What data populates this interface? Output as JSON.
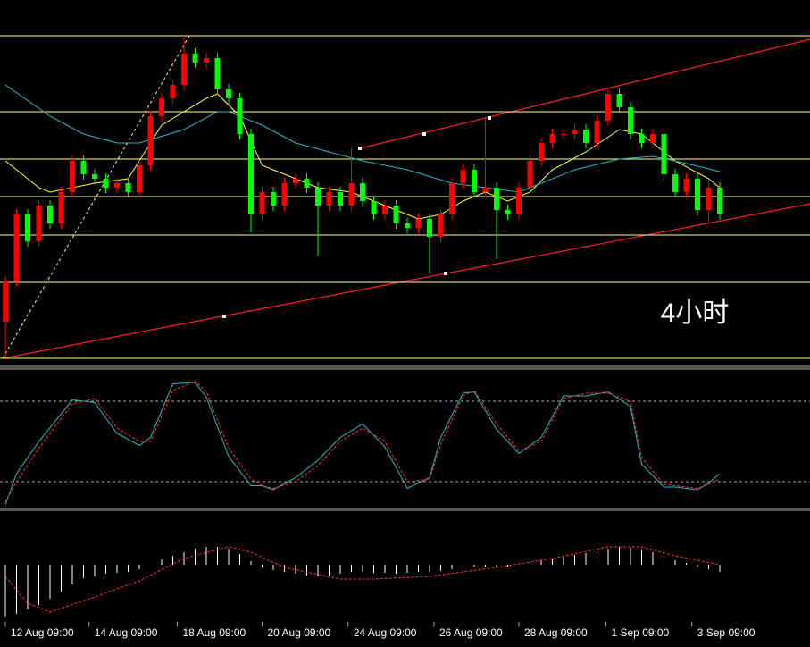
{
  "chart_data": [
    {
      "type": "candlestick",
      "up_color": "#ff0000",
      "down_color": "#00ff00",
      "level_color": "#ffff80",
      "annotation": "4小时",
      "xlim": [
        -0.48,
        72.08
      ],
      "ylim": [
        0,
        408
      ],
      "levels": [
        368,
        283,
        230,
        188,
        145,
        92,
        7
      ],
      "open": [
        48,
        93,
        168,
        138,
        178,
        158,
        193,
        228,
        213,
        208,
        198,
        203,
        193,
        223,
        278,
        298,
        313,
        348,
        338,
        343,
        308,
        298,
        258,
        168,
        193,
        178,
        203,
        208,
        198,
        178,
        193,
        178,
        203,
        183,
        168,
        178,
        158,
        153,
        163,
        143,
        168,
        203,
        218,
        193,
        198,
        173,
        168,
        198,
        228,
        248,
        258,
        258,
        263,
        248,
        273,
        303,
        288,
        258,
        248,
        258,
        213,
        193,
        208,
        173,
        198
      ],
      "high": [
        99,
        174,
        174,
        184,
        184,
        199,
        234,
        234,
        219,
        214,
        209,
        209,
        229,
        284,
        304,
        319,
        368,
        354,
        349,
        349,
        314,
        304,
        264,
        199,
        199,
        209,
        214,
        214,
        204,
        199,
        199,
        243,
        209,
        189,
        184,
        184,
        164,
        169,
        169,
        174,
        209,
        224,
        224,
        276,
        204,
        179,
        204,
        234,
        254,
        264,
        264,
        269,
        269,
        279,
        310,
        309,
        294,
        264,
        264,
        264,
        219,
        214,
        214,
        204,
        204
      ],
      "low": [
        8,
        87,
        132,
        132,
        152,
        152,
        187,
        207,
        202,
        192,
        192,
        187,
        187,
        217,
        272,
        292,
        307,
        332,
        332,
        302,
        292,
        252,
        148,
        162,
        172,
        172,
        197,
        192,
        122,
        172,
        172,
        172,
        177,
        162,
        162,
        152,
        147,
        147,
        102,
        137,
        162,
        197,
        187,
        187,
        118,
        162,
        162,
        192,
        222,
        242,
        252,
        252,
        242,
        242,
        267,
        282,
        252,
        242,
        242,
        207,
        187,
        187,
        167,
        160,
        162
      ],
      "close": [
        93,
        168,
        138,
        178,
        158,
        193,
        228,
        213,
        208,
        198,
        203,
        193,
        223,
        278,
        298,
        313,
        348,
        338,
        343,
        308,
        298,
        258,
        168,
        193,
        178,
        203,
        208,
        198,
        178,
        193,
        178,
        203,
        183,
        168,
        178,
        158,
        153,
        163,
        143,
        168,
        203,
        218,
        193,
        198,
        173,
        168,
        198,
        228,
        248,
        258,
        258,
        263,
        248,
        273,
        303,
        288,
        258,
        248,
        258,
        213,
        193,
        208,
        173,
        198,
        168
      ],
      "lines": [
        {
          "color": "#ffff40",
          "x": [
            0,
            3,
            4,
            8,
            11,
            14,
            18,
            19,
            21,
            23,
            26,
            28,
            31,
            34,
            37,
            39,
            41,
            43,
            45,
            47,
            49,
            52,
            55,
            57,
            58,
            60,
            63,
            64
          ],
          "values": [
            228,
            198,
            193,
            203,
            208,
            268,
            298,
            303,
            278,
            223,
            208,
            198,
            193,
            178,
            163,
            168,
            183,
            193,
            183,
            193,
            218,
            238,
            263,
            258,
            248,
            228,
            208,
            198
          ]
        },
        {
          "color": "#29b6c8",
          "x": [
            0,
            4,
            7,
            10,
            12,
            16,
            19,
            20,
            23,
            26,
            29,
            32,
            36,
            40,
            43,
            46,
            48,
            51,
            55,
            58,
            60,
            64
          ],
          "values": [
            313,
            278,
            258,
            248,
            248,
            263,
            283,
            283,
            268,
            248,
            238,
            228,
            218,
            203,
            198,
            193,
            203,
            218,
            230,
            233,
            228,
            216
          ]
        }
      ]
    },
    {
      "type": "line",
      "xlim": [
        -0.48,
        72.08
      ],
      "ylim": [
        0,
        100
      ],
      "levels": [
        80,
        20
      ],
      "level_color": "#aaaaaa",
      "lines": [
        {
          "color": "#29b6c8",
          "dashed": false,
          "x": [
            0,
            1,
            3,
            6,
            8,
            10,
            12,
            13,
            15,
            17,
            18,
            20,
            22,
            23,
            24,
            26,
            28,
            30,
            32,
            34,
            36,
            38,
            39,
            41,
            42,
            44,
            46,
            48,
            50,
            52,
            54,
            56,
            57,
            59,
            60,
            62,
            63,
            64
          ],
          "values": [
            3,
            26,
            50,
            81,
            79,
            56,
            47,
            53,
            93,
            94,
            83,
            39,
            17,
            17,
            14,
            23,
            36,
            53,
            63,
            46,
            15,
            23,
            53,
            86,
            87,
            59,
            41,
            53,
            84,
            84,
            87,
            76,
            33,
            16,
            16,
            14,
            19,
            26
          ]
        },
        {
          "color": "#ff3030",
          "dashed": true,
          "x": [
            0,
            1,
            3,
            6,
            8,
            10,
            12,
            13,
            15,
            17,
            18,
            20,
            22,
            23,
            24,
            26,
            28,
            30,
            32,
            34,
            36,
            38,
            39,
            41,
            42,
            44,
            46,
            48,
            50,
            52,
            54,
            56,
            57,
            59,
            60,
            62,
            63,
            64
          ],
          "values": [
            5,
            20,
            45,
            78,
            82,
            60,
            50,
            50,
            88,
            95,
            87,
            45,
            22,
            17,
            15,
            20,
            32,
            50,
            60,
            50,
            20,
            22,
            48,
            84,
            88,
            63,
            43,
            50,
            82,
            86,
            86,
            80,
            38,
            18,
            17,
            15,
            18,
            22
          ]
        }
      ]
    },
    {
      "type": "bar",
      "color": "#ffffff",
      "xlim": [
        -0.48,
        72.08
      ],
      "ylim": [
        -63,
        59
      ],
      "values": [
        -58,
        -55,
        -50,
        -45,
        -38,
        -30,
        -22,
        -15,
        -13,
        -10,
        -9,
        -8,
        -5,
        0,
        6,
        10,
        14,
        18,
        20,
        20,
        18,
        12,
        4,
        -3,
        -6,
        -8,
        -10,
        -12,
        -13,
        -12,
        -10,
        -8,
        -8,
        -9,
        -9,
        -10,
        -9,
        -8,
        -8,
        -7,
        -5,
        -3,
        -2,
        -2,
        -3,
        -2,
        0,
        3,
        5,
        7,
        9,
        11,
        13,
        15,
        18,
        20,
        19,
        17,
        14,
        10,
        5,
        2,
        -2,
        -5,
        -8
      ],
      "lines": [
        {
          "color": "#ff3030",
          "dashed": true,
          "x": [
            0,
            2,
            4,
            8,
            12,
            16,
            20,
            22,
            25,
            30,
            33,
            38,
            41,
            44,
            49,
            54,
            57,
            60,
            64
          ],
          "values": [
            -13,
            -43,
            -53,
            -36,
            -18,
            7,
            20,
            14,
            -3,
            -16,
            -16,
            -13,
            -8,
            -3,
            7,
            20,
            20,
            10,
            0
          ]
        }
      ],
      "xticks": [
        {
          "value": 0,
          "label": "12 Aug 09:00"
        },
        {
          "value": 7.5,
          "label": "14 Aug 09:00"
        },
        {
          "value": 15.4,
          "label": "18 Aug 09:00"
        },
        {
          "value": 23,
          "label": "20 Aug 09:00"
        },
        {
          "value": 30.7,
          "label": "24 Aug 09:00"
        },
        {
          "value": 38.4,
          "label": "26 Aug 09:00"
        },
        {
          "value": 46,
          "label": "28 Aug 09:00"
        },
        {
          "value": 53.8,
          "label": "1 Sep 09:00"
        },
        {
          "value": 61.5,
          "label": "3 Sep 09:00"
        }
      ]
    }
  ]
}
